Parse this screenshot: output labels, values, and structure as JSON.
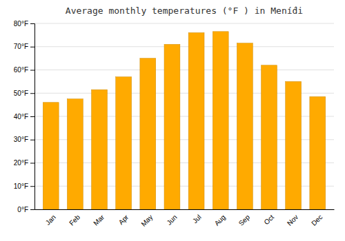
{
  "chart_data": {
    "type": "bar",
    "title": "Average monthly temperatures (°F ) in Mení́di",
    "categories": [
      "Jan",
      "Feb",
      "Mar",
      "Apr",
      "May",
      "Jun",
      "Jul",
      "Aug",
      "Sep",
      "Oct",
      "Nov",
      "Dec"
    ],
    "values": [
      46,
      47.5,
      51.5,
      57,
      65,
      71,
      76,
      76.5,
      71.5,
      62,
      55,
      48.5
    ],
    "color": "#FFAA00",
    "ylim": [
      0,
      80
    ],
    "yticks": [
      {
        "value": 0,
        "label": "0°F"
      },
      {
        "value": 10,
        "label": "10°F"
      },
      {
        "value": 20,
        "label": "20°F"
      },
      {
        "value": 30,
        "label": "30°F"
      },
      {
        "value": 40,
        "label": "40°F"
      },
      {
        "value": 50,
        "label": "50°F"
      },
      {
        "value": 60,
        "label": "60°F"
      },
      {
        "value": 70,
        "label": "70°F"
      },
      {
        "value": 80,
        "label": "80°F"
      }
    ],
    "grid": true
  }
}
